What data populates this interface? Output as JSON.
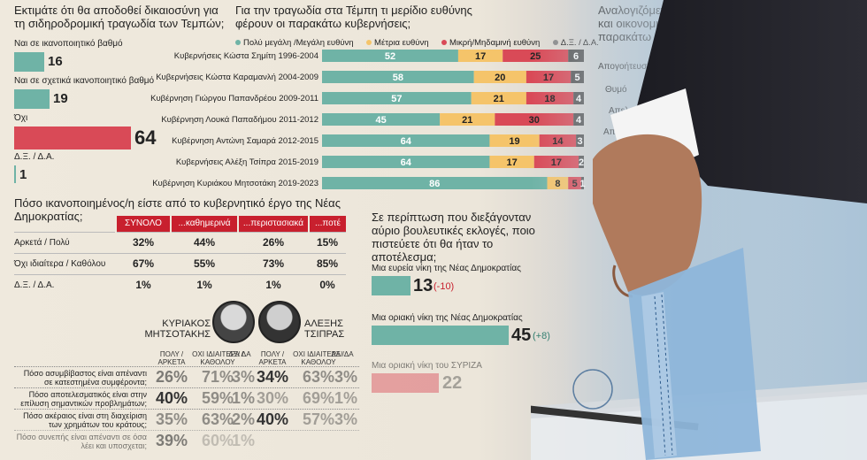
{
  "p1": {
    "title": "Εκτιμάτε ότι θα αποδοθεί δικαιοσύνη για τη σιδηροδρομική τραγωδία των Τεμπών;",
    "items": [
      {
        "label": "Ναι σε ικανοποιητικό βαθμό",
        "value": 16
      },
      {
        "label": "Ναι σε σχετικά ικανοποιητικό βαθμό",
        "value": 19
      },
      {
        "label": "Όχι",
        "value": 64
      },
      {
        "label": "Δ.Ξ. / Δ.Α.",
        "value": 1
      }
    ]
  },
  "p2": {
    "title": "Για την τραγωδία στα Τέμπη τι μερίδιο ευθύνης φέρουν οι παρακάτω κυβερνήσεις;",
    "legend": [
      {
        "label": "Πολύ μεγάλη /Μεγάλη ευθύνη",
        "color": "#6fb3a6"
      },
      {
        "label": "Μέτρια ευθύνη",
        "color": "#f5c46a"
      },
      {
        "label": "Μικρή/Μηδαμινή ευθύνη",
        "color": "#d94a57"
      },
      {
        "label": "Δ.Ξ. / Δ.Α.",
        "color": "#555555"
      }
    ]
  },
  "chart_data": {
    "type": "bar",
    "stacked": true,
    "orientation": "horizontal",
    "categories": [
      "Κυβερνήσεις Κώστα Σημίτη 1996-2004",
      "Κυβερνήσεις Κώστα Καραμανλή 2004-2009",
      "Κυβέρνηση Γιώργου Παπανδρέου 2009-2011",
      "Κυβέρνηση Λουκά Παπαδήμου 2011-2012",
      "Κυβέρνηση Αντώνη Σαμαρά 2012-2015",
      "Κυβερνήσεις Αλέξη Τσίπρα 2015-2019",
      "Κυβέρνηση Κυριάκου Μητσοτάκη 2019-2023"
    ],
    "series": [
      {
        "name": "Πολύ μεγάλη /Μεγάλη ευθύνη",
        "values": [
          52,
          58,
          57,
          45,
          64,
          64,
          86
        ]
      },
      {
        "name": "Μέτρια ευθύνη",
        "values": [
          17,
          20,
          21,
          21,
          19,
          17,
          8
        ]
      },
      {
        "name": "Μικρή/Μηδαμινή ευθύνη",
        "values": [
          25,
          17,
          18,
          30,
          14,
          17,
          5
        ]
      },
      {
        "name": "Δ.Ξ. / Δ.Α.",
        "values": [
          6,
          5,
          4,
          4,
          3,
          2,
          1
        ]
      }
    ],
    "xlim": [
      0,
      100
    ]
  },
  "p3": {
    "title": "Πόσο ικανοποιημένος/η είστε από το κυβερνητικό έργο της Νέας Δημοκρατίας;",
    "headers": [
      "ΣΥΝΟΛΟ",
      "...καθημερινά",
      "...περιστασιακά",
      "...ποτέ"
    ],
    "rows": [
      {
        "label": "Αρκετά / Πολύ",
        "values": [
          "32%",
          "44%",
          "26%",
          "15%"
        ]
      },
      {
        "label": "Όχι ιδιαίτερα / Καθόλου",
        "values": [
          "67%",
          "55%",
          "73%",
          "85%"
        ]
      },
      {
        "label": "Δ.Ξ. / Δ.Α.",
        "values": [
          "1%",
          "1%",
          "1%",
          "0%"
        ]
      }
    ]
  },
  "p4": {
    "title": "Σε περίπτωση που διεξάγονταν αύριο βουλευτικές εκλογές, ποιο πιστεύετε ότι θα ήταν το αποτέλεσμα;",
    "items": [
      {
        "label": "Μια ευρεία νίκη της Νέας Δημοκρατίας",
        "value": 13,
        "change": "(-10)",
        "change_color": "#c8202e"
      },
      {
        "label": "Μια οριακή νίκη της Νέας Δημοκρατίας",
        "value": 45,
        "change": "(+8)",
        "change_color": "#2a7a6a"
      },
      {
        "label": "Μια οριακή νίκη του ΣΥΡΙΖΑ",
        "value": 22,
        "change": "",
        "change_color": "#2a7a6a"
      }
    ]
  },
  "p5": {
    "leader1": "ΚΥΡΙΑΚΟΣ ΜΗΤΣΟΤΑΚΗΣ",
    "leader2": "ΑΛΕΞΗΣ ΤΣΙΠΡΑΣ",
    "cols": [
      "ΠΟΛΥ / ΑΡΚΕΤΑ",
      "ΟΧΙ ΙΔΙΑΙΤΕΡΑ / ΚΑΘΟΛΟΥ",
      "ΔΞ/ ΔΑ"
    ],
    "rows": [
      {
        "q": "Πόσο ασυμβίβαστος είναι απέναντι σε κατεστημένα συμφέροντα;",
        "m": [
          "26%",
          "71%",
          "3%"
        ],
        "t": [
          "34%",
          "63%",
          "3%"
        ]
      },
      {
        "q": "Πόσο αποτελεσματικός είναι στην επίλυση σημαντικών προβλημάτων;",
        "m": [
          "40%",
          "59%",
          "1%"
        ],
        "t": [
          "30%",
          "69%",
          "1%"
        ]
      },
      {
        "q": "Πόσο ακέραιος είναι στη διαχείριση των χρημάτων του κράτους;",
        "m": [
          "35%",
          "63%",
          "2%"
        ],
        "t": [
          "40%",
          "57%",
          "3%"
        ]
      },
      {
        "q": "Πόσο συνεπής είναι απέναντι σε όσα λέει και υποσχεται;",
        "m": [
          "39%",
          "60%",
          "1%"
        ],
        "t": [
          "",
          "",
          ""
        ]
      }
    ]
  },
  "p6": {
    "title_line1": "Αναλογιζόμενος/η τι απ",
    "title_line2": "και οικονομική κατάστ",
    "title_line3": "παρακάτω συναισθήματ",
    "items": [
      "Απογοήτευση",
      "Θυμό",
      "Απελπ",
      "Αποστροφ"
    ]
  }
}
